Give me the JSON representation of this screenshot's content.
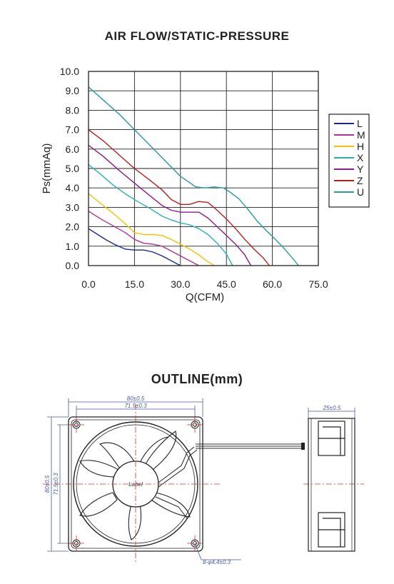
{
  "chart_title": "AIR FLOW/STATIC-PRESSURE",
  "outline_title": "OUTLINE(mm)",
  "chart_data": {
    "type": "line",
    "title": "AIR FLOW/STATIC-PRESSURE",
    "xlabel": "Q(CFM)",
    "ylabel": "Ps(mmAq)",
    "xlim": [
      0,
      75
    ],
    "ylim": [
      0,
      10
    ],
    "x_ticks": [
      "0.0",
      "15.0",
      "30.0",
      "45.0",
      "60.0",
      "75.0"
    ],
    "y_ticks": [
      "0.0",
      "1.0",
      "2.0",
      "3.0",
      "4.0",
      "5.0",
      "6.0",
      "7.0",
      "8.0",
      "9.0",
      "10.0"
    ],
    "grid": true,
    "legend_position": "right",
    "series": [
      {
        "name": "L",
        "color": "#1a2a8c",
        "x": [
          0,
          3,
          6,
          9,
          12,
          15,
          18,
          21,
          24,
          27,
          30
        ],
        "y": [
          1.9,
          1.6,
          1.3,
          1.05,
          0.85,
          0.8,
          0.8,
          0.7,
          0.5,
          0.25,
          0.0
        ]
      },
      {
        "name": "M",
        "color": "#b0309c",
        "x": [
          0,
          4,
          8,
          12,
          15,
          18,
          21,
          24,
          27,
          30,
          33,
          36
        ],
        "y": [
          2.8,
          2.4,
          2.05,
          1.7,
          1.35,
          1.15,
          1.1,
          1.0,
          0.75,
          0.5,
          0.25,
          0.0
        ]
      },
      {
        "name": "H",
        "color": "#f2c400",
        "x": [
          0,
          4,
          8,
          12,
          15,
          18,
          21,
          24,
          27,
          30,
          33,
          36,
          38,
          41
        ],
        "y": [
          3.7,
          3.2,
          2.7,
          2.15,
          1.7,
          1.6,
          1.6,
          1.55,
          1.35,
          1.1,
          0.85,
          0.55,
          0.3,
          0.0
        ]
      },
      {
        "name": "X",
        "color": "#2ab0b0",
        "x": [
          0,
          4,
          8,
          12,
          16,
          20,
          24,
          27,
          30,
          33,
          36,
          39,
          42,
          45,
          47
        ],
        "y": [
          5.2,
          4.7,
          4.15,
          3.7,
          3.3,
          2.95,
          2.55,
          2.35,
          2.2,
          2.1,
          1.9,
          1.6,
          1.15,
          0.6,
          0.0
        ]
      },
      {
        "name": "Y",
        "color": "#8a1e8a",
        "x": [
          0,
          5,
          10,
          15,
          20,
          24,
          27,
          30,
          33,
          36,
          39,
          42,
          45,
          48,
          51,
          53
        ],
        "y": [
          6.2,
          5.6,
          4.9,
          4.25,
          3.6,
          3.1,
          2.85,
          2.75,
          2.75,
          2.75,
          2.45,
          2.0,
          1.55,
          1.1,
          0.55,
          0.0
        ]
      },
      {
        "name": "Z",
        "color": "#b81e1e",
        "x": [
          0,
          5,
          10,
          15,
          20,
          24,
          27,
          30,
          33,
          36,
          39,
          42,
          45,
          48,
          51,
          54,
          57,
          59
        ],
        "y": [
          7.0,
          6.4,
          5.7,
          5.0,
          4.4,
          3.9,
          3.4,
          3.15,
          3.15,
          3.3,
          3.25,
          2.85,
          2.4,
          1.9,
          1.35,
          0.85,
          0.4,
          0.0
        ]
      },
      {
        "name": "U",
        "color": "#2a9a9a",
        "x": [
          0,
          5,
          10,
          15,
          20,
          25,
          30,
          35,
          38,
          41,
          44,
          46,
          49,
          52,
          55,
          58,
          61,
          64,
          67,
          68.5
        ],
        "y": [
          9.2,
          8.5,
          7.8,
          7.0,
          6.2,
          5.4,
          4.6,
          4.05,
          4.0,
          4.05,
          4.0,
          3.8,
          3.45,
          2.9,
          2.3,
          1.8,
          1.35,
          0.85,
          0.3,
          0.0
        ]
      }
    ]
  },
  "outline": {
    "front_width_label": "80±0.5",
    "front_inner_width_label": "71.5±0.3",
    "front_height_label": "80±0.5",
    "front_inner_height_label": "71.5±0.3",
    "side_width_label": "25±0.5",
    "hole_label": "8-φ4.4±0.3",
    "hub_label": "Label"
  }
}
